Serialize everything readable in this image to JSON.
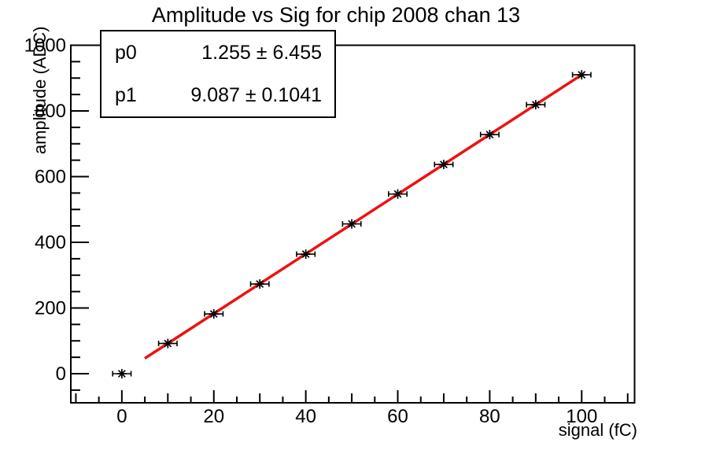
{
  "title": "Amplitude vs Sig for chip 2008 chan 13",
  "stats_box": {
    "rows": [
      {
        "label": "p0",
        "value": "1.255 ± 6.455"
      },
      {
        "label": "p1",
        "value": "9.087 ± 0.1041"
      }
    ]
  },
  "x_axis_title": "signal (fC)",
  "y_axis_title": "amplitude (ADC)",
  "colors": {
    "fit_line": "#ee1111",
    "marker": "#000000",
    "axis": "#000000",
    "background": "#ffffff"
  },
  "chart_data": {
    "type": "scatter",
    "title": "Amplitude vs Sig for chip 2008 chan 13",
    "xlabel": "signal (fC)",
    "ylabel": "amplitude (ADC)",
    "x": [
      0,
      10,
      20,
      30,
      40,
      50,
      60,
      70,
      80,
      90,
      100
    ],
    "y": [
      0,
      92,
      182,
      273,
      364,
      456,
      547,
      637,
      728,
      819,
      910
    ],
    "xerr": 2,
    "marker": "asterisk",
    "fit": {
      "type": "linear",
      "p0": 1.255,
      "p0_err": 6.455,
      "p1": 9.087,
      "p1_err": 0.1041,
      "range": [
        5,
        100
      ],
      "color": "#ee1111"
    },
    "xlim": [
      -11.1,
      111.5
    ],
    "ylim": [
      -88.6,
      1000
    ],
    "x_major_ticks": [
      0,
      20,
      40,
      60,
      80,
      100
    ],
    "x_medium_step": 10,
    "x_minor_step": 5,
    "y_major_ticks": [
      0,
      200,
      400,
      600,
      800,
      1000
    ],
    "y_minor_step": 50,
    "grid": false,
    "legend": "none"
  }
}
